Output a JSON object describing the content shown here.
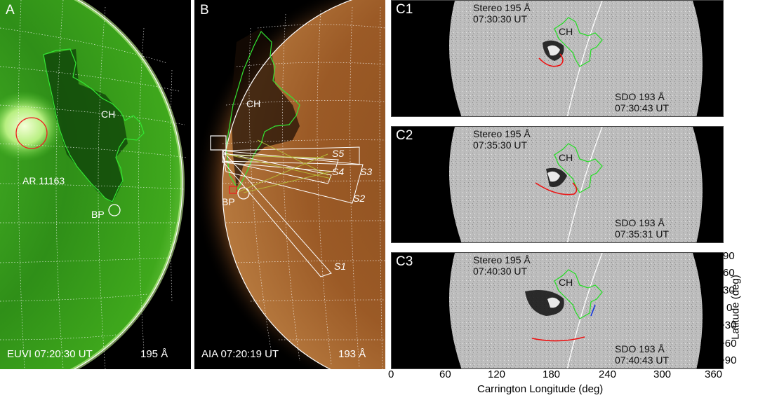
{
  "panel_a": {
    "label": "A",
    "instrument_time": "EUVI 07:20:30 UT",
    "wavelength": "195 Å",
    "ch_label": "CH",
    "ar_label": "AR 11163",
    "bp_label": "BP"
  },
  "panel_b": {
    "label": "B",
    "instrument_time": "AIA 07:20:19 UT",
    "wavelength": "193 Å",
    "ch_label": "CH",
    "bp_label": "BP",
    "slices": [
      "S1",
      "S2",
      "S3",
      "S4",
      "S5"
    ]
  },
  "panel_c": [
    {
      "label": "C1",
      "stereo": "Stereo 195 Å",
      "stereo_time": "07:30:30 UT",
      "sdo": "SDO 193 Å",
      "sdo_time": "07:30:43 UT",
      "ch_label": "CH"
    },
    {
      "label": "C2",
      "stereo": "Stereo 195 Å",
      "stereo_time": "07:35:30 UT",
      "sdo": "SDO 193 Å",
      "sdo_time": "07:35:31 UT",
      "ch_label": "CH"
    },
    {
      "label": "C3",
      "stereo": "Stereo 195 Å",
      "stereo_time": "07:40:30 UT",
      "sdo": "SDO 193 Å",
      "sdo_time": "07:40:43 UT",
      "ch_label": "CH"
    }
  ],
  "x_axis": {
    "title": "Carrington Longitude (deg)",
    "ticks": [
      "0",
      "60",
      "120",
      "180",
      "240",
      "300",
      "360"
    ]
  },
  "y_axis": {
    "title": "Latitude (deg)",
    "ticks": [
      "90",
      "60",
      "30",
      "0",
      "−30",
      "−60",
      "−90"
    ]
  },
  "colors": {
    "euvi_green": "#3fae1e",
    "aia_brown": "#a0622a",
    "contour_green": "#22dd22",
    "front_red": "#ee1111",
    "front_blue": "#1133dd"
  }
}
